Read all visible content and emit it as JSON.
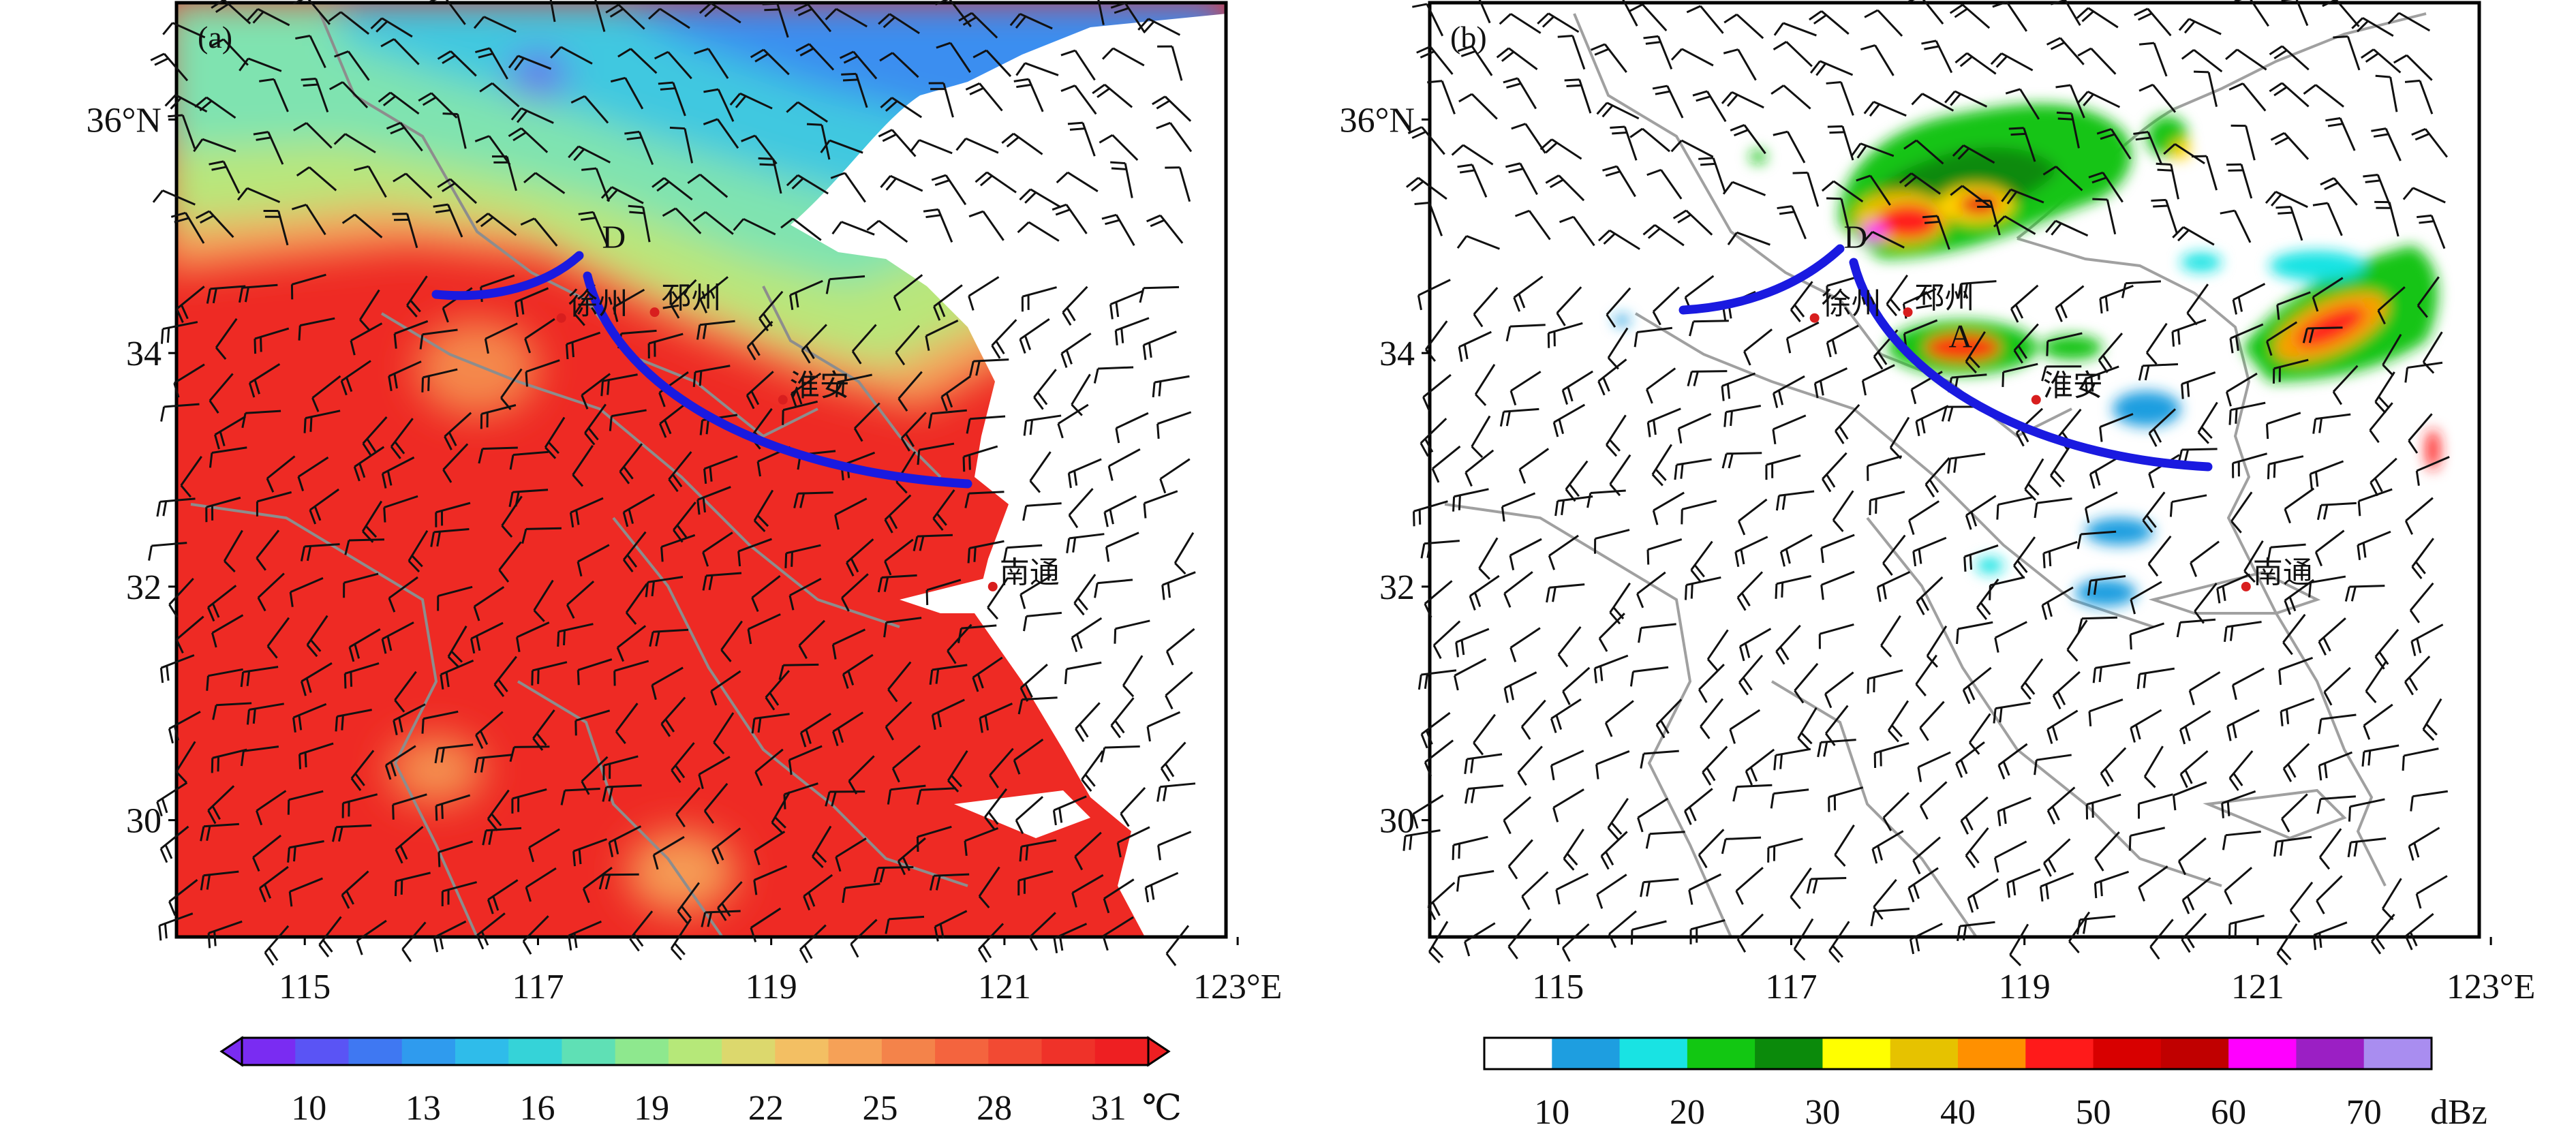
{
  "panels": [
    {
      "id": "a",
      "tag": "(a)",
      "lat_ticks": [
        "36°N",
        "34",
        "32",
        "30"
      ],
      "lon_ticks": [
        "115",
        "117",
        "119",
        "121",
        "123°E"
      ],
      "cities": [
        {
          "name": "徐州",
          "lon": 117.2,
          "lat": 34.3
        },
        {
          "name": "邳州",
          "lon": 118.0,
          "lat": 34.35
        },
        {
          "name": "淮安",
          "lon": 119.1,
          "lat": 33.6
        },
        {
          "name": "南通",
          "lon": 120.9,
          "lat": 32.0
        }
      ],
      "point_labels": [
        {
          "text": "D",
          "lon": 117.55,
          "lat": 34.9
        }
      ],
      "colorbar": {
        "ticks": [
          "10",
          "13",
          "16",
          "19",
          "22",
          "25",
          "28",
          "31"
        ],
        "unit": "℃",
        "colors": [
          "#7a2cf2",
          "#5a54f5",
          "#3f78f2",
          "#2f9bee",
          "#2fbcea",
          "#35d3d8",
          "#5fe0b5",
          "#8ee88e",
          "#b6e879",
          "#dcd86d",
          "#f3bf63",
          "#f6a157",
          "#f4834a",
          "#f4643e",
          "#f24a33",
          "#ef3229",
          "#ee1f22"
        ]
      }
    },
    {
      "id": "b",
      "tag": "(b)",
      "lat_ticks": [
        "36°N",
        "34",
        "32",
        "30"
      ],
      "lon_ticks": [
        "115",
        "117",
        "119",
        "121",
        "123°E"
      ],
      "cities": [
        {
          "name": "徐州",
          "lon": 117.2,
          "lat": 34.3
        },
        {
          "name": "邳州",
          "lon": 118.0,
          "lat": 34.35
        },
        {
          "name": "淮安",
          "lon": 119.1,
          "lat": 33.6
        },
        {
          "name": "南通",
          "lon": 120.9,
          "lat": 32.0
        }
      ],
      "point_labels": [
        {
          "text": "D",
          "lon": 117.45,
          "lat": 34.9
        },
        {
          "text": "A",
          "lon": 118.35,
          "lat": 34.05
        }
      ],
      "colorbar": {
        "ticks": [
          "10",
          "20",
          "30",
          "40",
          "50",
          "60",
          "70"
        ],
        "unit": "dBz",
        "colors": [
          "#ffffff",
          "#1e9ee0",
          "#19e3e3",
          "#12c712",
          "#0b8a0b",
          "#ffff00",
          "#e6c200",
          "#ff9000",
          "#ff1a1a",
          "#d80000",
          "#c00000",
          "#ff00ff",
          "#9b1fc4",
          "#a98df0"
        ]
      }
    }
  ]
}
